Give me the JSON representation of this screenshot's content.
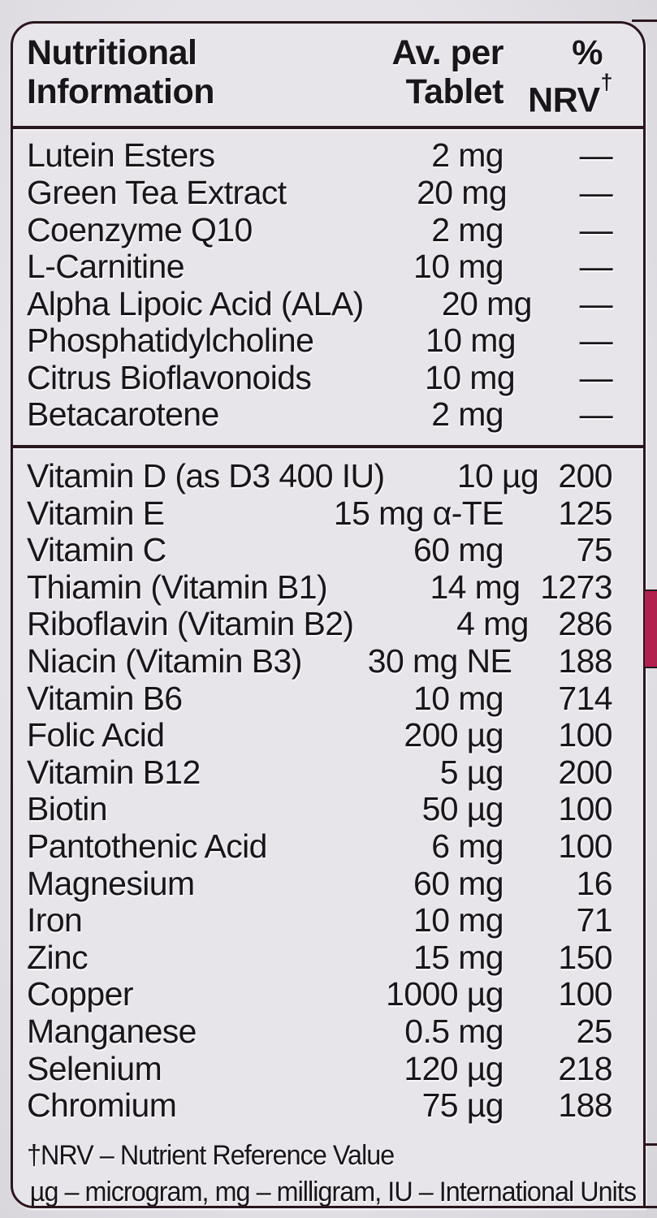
{
  "colors": {
    "bg": "#dcdae0",
    "panel": "#e7e5ea",
    "line": "#2a161e",
    "text": "#19161a",
    "accent": "#b2204f"
  },
  "header": {
    "col1_line1": "Nutritional",
    "col1_line2": "Information",
    "col2_line1": "Av. per",
    "col2_line2": "Tablet",
    "col3_line1": "%",
    "col3_line2": "NRV",
    "col3_sup": "†"
  },
  "sections": [
    {
      "name": "botanicals-and-actives",
      "rows": [
        {
          "name": "Lutein Esters",
          "amount": "2 mg",
          "nrv": "—"
        },
        {
          "name": "Green Tea Extract",
          "amount": "20 mg",
          "nrv": "—"
        },
        {
          "name": "Coenzyme Q10",
          "amount": "2 mg",
          "nrv": "—"
        },
        {
          "name": "L-Carnitine",
          "amount": "10 mg",
          "nrv": "—"
        },
        {
          "name": "Alpha Lipoic Acid (ALA)",
          "amount": "20 mg",
          "nrv": "—"
        },
        {
          "name": "Phosphatidylcholine",
          "amount": "10 mg",
          "nrv": "—"
        },
        {
          "name": "Citrus Bioflavonoids",
          "amount": "10 mg",
          "nrv": "—"
        },
        {
          "name": "Betacarotene",
          "amount": "2 mg",
          "nrv": "—"
        }
      ]
    },
    {
      "name": "vitamins-and-minerals",
      "rows": [
        {
          "name": "Vitamin D (as D3 400 IU)",
          "amount": "10 µg",
          "nrv": "200"
        },
        {
          "name": "Vitamin E",
          "amount": "15 mg α-TE",
          "nrv": "125"
        },
        {
          "name": "Vitamin C",
          "amount": "60 mg",
          "nrv": "75"
        },
        {
          "name": "Thiamin (Vitamin B1)",
          "amount": "14 mg",
          "nrv": "1273"
        },
        {
          "name": "Riboflavin (Vitamin B2)",
          "amount": "4 mg",
          "nrv": "286"
        },
        {
          "name": "Niacin (Vitamin B3)",
          "amount": "30 mg NE",
          "nrv": "188"
        },
        {
          "name": "Vitamin B6",
          "amount": "10 mg",
          "nrv": "714"
        },
        {
          "name": "Folic Acid",
          "amount": "200 µg",
          "nrv": "100"
        },
        {
          "name": "Vitamin B12",
          "amount": "5 µg",
          "nrv": "200"
        },
        {
          "name": "Biotin",
          "amount": "50 µg",
          "nrv": "100"
        },
        {
          "name": "Pantothenic Acid",
          "amount": "6 mg",
          "nrv": "100"
        },
        {
          "name": "Magnesium",
          "amount": "60 mg",
          "nrv": "16"
        },
        {
          "name": "Iron",
          "amount": "10 mg",
          "nrv": "71"
        },
        {
          "name": "Zinc",
          "amount": "15 mg",
          "nrv": "150"
        },
        {
          "name": "Copper",
          "amount": "1000 µg",
          "nrv": "100"
        },
        {
          "name": "Manganese",
          "amount": "0.5 mg",
          "nrv": "25"
        },
        {
          "name": "Selenium",
          "amount": "120 µg",
          "nrv": "218"
        },
        {
          "name": "Chromium",
          "amount": "75 µg",
          "nrv": "188"
        }
      ]
    }
  ],
  "footnotes": [
    "†NRV – Nutrient Reference Value",
    "µg – microgram, mg – milligram, IU – International Units"
  ]
}
